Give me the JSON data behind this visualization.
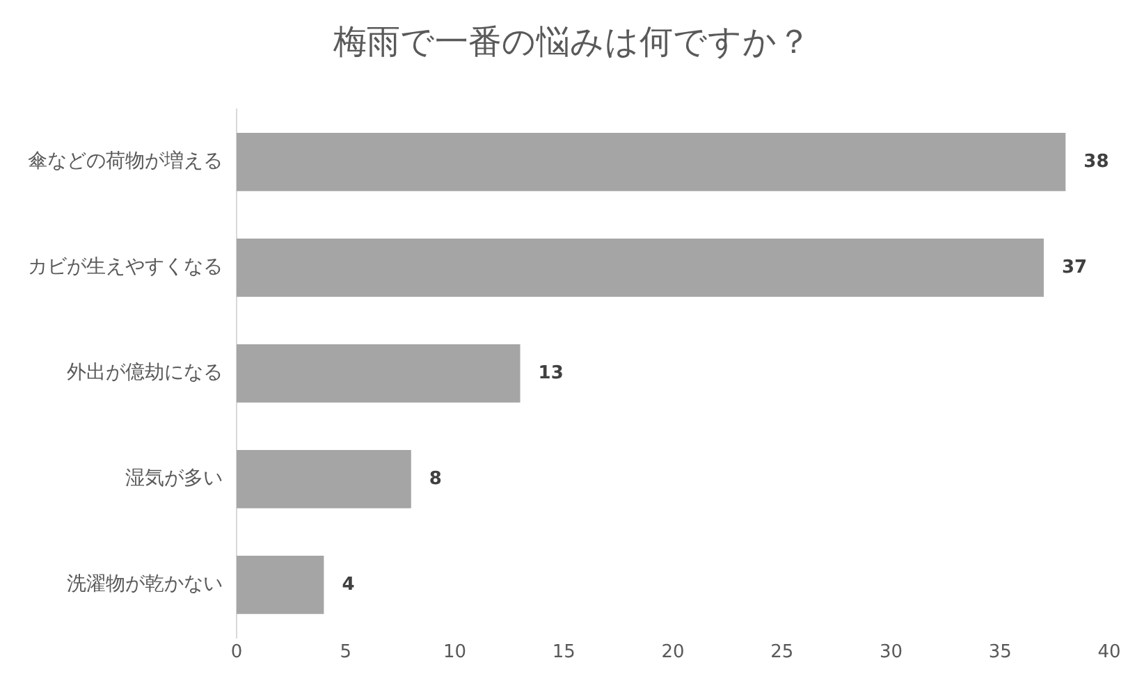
{
  "chart_data": {
    "type": "bar",
    "orientation": "horizontal",
    "title": "梅雨で一番の悩みは何ですか？",
    "categories": [
      "傘などの荷物が増える",
      "カビが生えやすくなる",
      "外出が億劫になる",
      "湿気が多い",
      "洗濯物が乾かない"
    ],
    "values": [
      38,
      37,
      13,
      8,
      4
    ],
    "color": "#a5a5a5",
    "xlim": [
      0,
      40
    ],
    "xticks": [
      0,
      5,
      10,
      15,
      20,
      25,
      30,
      35,
      40
    ],
    "grid": false,
    "legend": false,
    "data_labels": true
  }
}
